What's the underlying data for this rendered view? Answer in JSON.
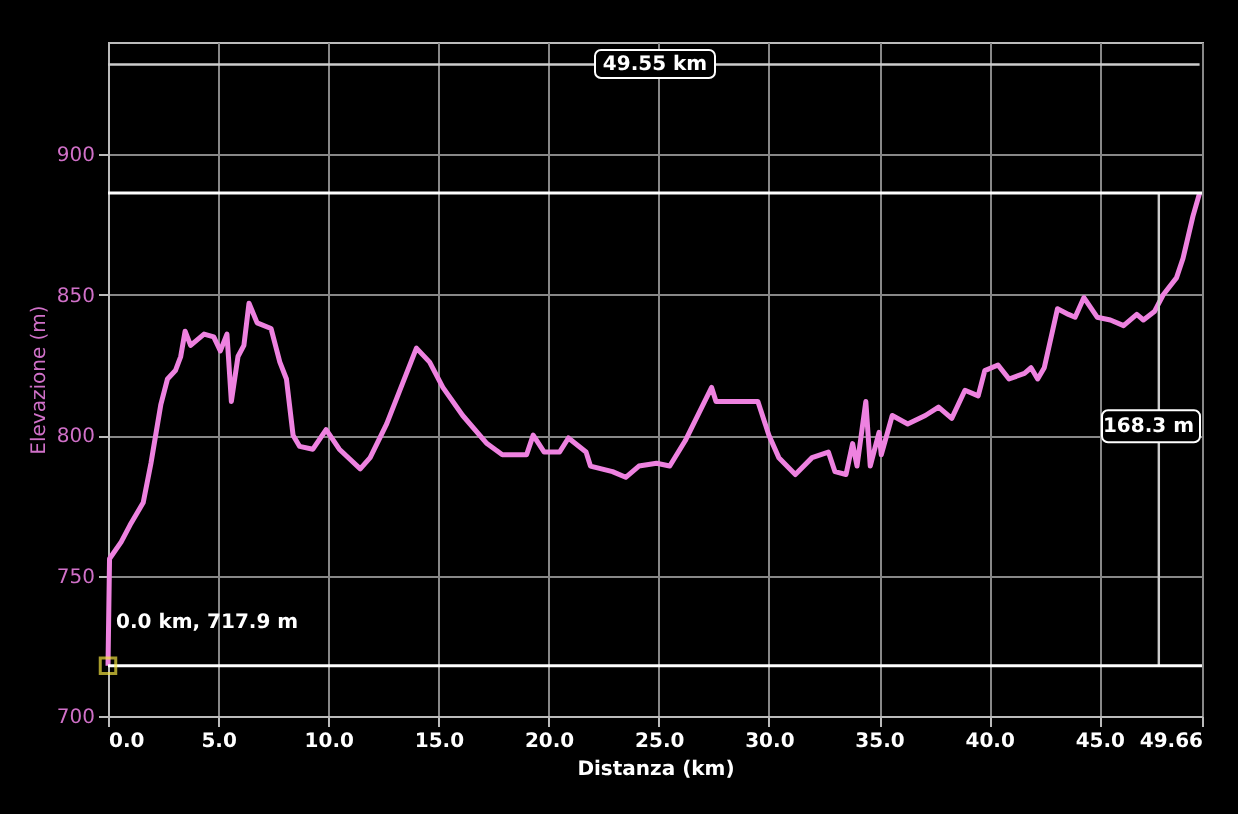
{
  "chart_data": {
    "type": "line",
    "xlabel": "Distanza (km)",
    "ylabel": "Elevazione (m)",
    "xlim": [
      0,
      49.66
    ],
    "xticks": [
      {
        "value": 0,
        "label": "0.0"
      },
      {
        "value": 5,
        "label": "5.0"
      },
      {
        "value": 10,
        "label": "10.0"
      },
      {
        "value": 15,
        "label": "15.0"
      },
      {
        "value": 20,
        "label": "20.0"
      },
      {
        "value": 25,
        "label": "25.0"
      },
      {
        "value": 30,
        "label": "30.0"
      },
      {
        "value": 35,
        "label": "35.0"
      },
      {
        "value": 40,
        "label": "40.0"
      },
      {
        "value": 45,
        "label": "45.0"
      },
      49.66
    ],
    "ylim": [
      700,
      940
    ],
    "yticks": [
      700,
      750,
      800,
      850,
      900
    ],
    "grid": true,
    "marker": "none",
    "line_style": "solid",
    "x": [
      0,
      0.07,
      0.6,
      1.0,
      1.6,
      1.95,
      2.4,
      2.7,
      3.06,
      3.3,
      3.5,
      3.75,
      4.36,
      4.8,
      5.1,
      5.4,
      5.6,
      5.9,
      6.17,
      6.4,
      6.77,
      7.4,
      7.8,
      8.1,
      8.4,
      8.7,
      9.3,
      9.9,
      10.5,
      11.45,
      11.9,
      12.65,
      14.0,
      14.6,
      15.2,
      16.1,
      17.2,
      17.9,
      19.0,
      19.3,
      19.8,
      20.5,
      20.9,
      21.7,
      21.9,
      22.9,
      23.5,
      24.1,
      24.9,
      25.5,
      26.2,
      27.4,
      27.6,
      29.5,
      30.0,
      30.45,
      31.2,
      31.96,
      32.7,
      33.0,
      33.5,
      33.8,
      34.0,
      34.4,
      34.6,
      35.0,
      35.1,
      35.6,
      36.3,
      37.1,
      37.7,
      38.3,
      38.9,
      39.5,
      39.8,
      40.4,
      40.9,
      41.6,
      41.9,
      42.2,
      42.5,
      43.1,
      43.6,
      43.9,
      44.3,
      44.9,
      45.5,
      46.1,
      46.7,
      47.0,
      47.5,
      47.9,
      48.5,
      48.8,
      49.25,
      49.55
    ],
    "series": [
      {
        "color": "#ee82e0",
        "values": [
          717.9,
          756,
          762,
          768,
          776,
          790,
          811,
          820,
          823,
          828,
          837,
          832,
          836,
          835,
          830,
          836,
          812,
          828,
          832,
          847,
          840,
          838,
          826,
          820,
          800,
          796,
          795,
          802,
          795,
          788,
          792,
          804,
          831,
          826,
          817,
          807,
          797,
          793,
          793,
          800,
          794,
          794,
          799,
          794,
          789,
          787,
          785,
          789,
          790,
          789,
          798,
          817,
          812,
          812,
          800,
          792,
          786,
          792,
          794,
          787,
          786,
          797,
          789,
          812,
          789,
          801,
          793,
          807,
          804,
          807,
          810,
          806,
          816,
          814,
          823,
          825,
          820,
          822,
          824,
          820,
          824,
          845,
          843,
          842,
          849,
          842,
          841,
          839,
          843,
          841,
          844,
          850,
          856,
          863,
          878,
          886.2
        ]
      },
      {
        "type": "line",
        "color": "#cccccc",
        "x": [
          0,
          49.55
        ],
        "values": [
          932,
          932
        ]
      },
      {
        "type": "line",
        "color": "#cccccc",
        "x": [
          47.7,
          47.7
        ],
        "values": [
          717.9,
          886.2
        ]
      }
    ],
    "ref_lines": [
      {
        "axis": "y",
        "value": 717.9,
        "color": "#ffffff"
      },
      {
        "axis": "y",
        "value": 886.2,
        "color": "#ffffff"
      }
    ],
    "annotations": [
      {
        "text": "0.0 km, 717.9 m",
        "x": 0,
        "y": 717.9
      },
      "49.55 km",
      "168.3 m"
    ]
  }
}
